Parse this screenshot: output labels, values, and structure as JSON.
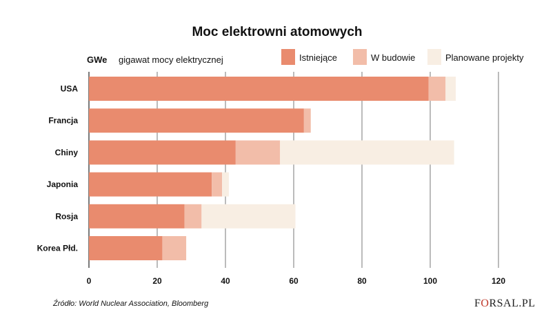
{
  "chart_data": {
    "type": "bar",
    "orientation": "horizontal",
    "stacked": true,
    "title": "Moc elektrowni atomowych",
    "unit_short": "GWe",
    "unit_long": "gigawat mocy elektrycznej",
    "categories": [
      "USA",
      "Francja",
      "Chiny",
      "Japonia",
      "Rosja",
      "Korea Płd."
    ],
    "series": [
      {
        "name": "Istniejące",
        "color": "#e98b6e",
        "values": [
          99.5,
          63,
          43,
          36,
          28,
          21.5
        ]
      },
      {
        "name": "W budowie",
        "color": "#f2bda9",
        "values": [
          5,
          2,
          13,
          3,
          5,
          7
        ]
      },
      {
        "name": "Planowane projekty",
        "color": "#f8eee3",
        "values": [
          3,
          0,
          51,
          2,
          27.5,
          0
        ]
      }
    ],
    "xlim": [
      0,
      120
    ],
    "xticks": [
      "0",
      "20",
      "40",
      "60",
      "80",
      "100",
      "120"
    ],
    "grid": true,
    "legend_position": "top-right"
  },
  "source": "Źródło: World Nuclear Association, Bloomberg",
  "logo": {
    "before": "F",
    "o": "O",
    "after": "RSAL.PL"
  }
}
